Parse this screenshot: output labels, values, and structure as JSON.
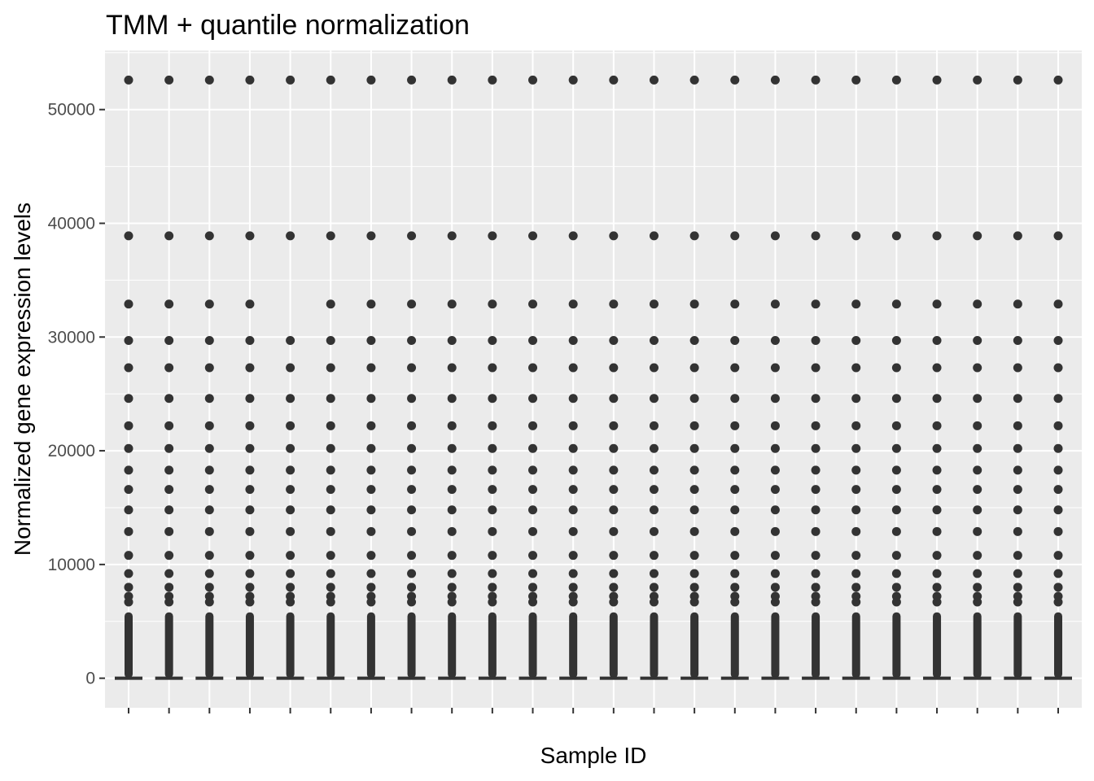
{
  "chart_data": {
    "type": "box",
    "title": "TMM + quantile normalization",
    "xlabel": "Sample ID",
    "ylabel": "Normalized gene expression levels",
    "ylim": [
      -2600,
      55200
    ],
    "y_ticks": [
      0,
      10000,
      20000,
      30000,
      40000,
      50000
    ],
    "y_tick_labels": [
      "0",
      "10000",
      "20000",
      "30000",
      "40000",
      "50000"
    ],
    "n_samples": 24,
    "x_tick_labels_note": "GTEX sample ID labels overlap and are illegible",
    "box": {
      "min": 0,
      "q1": 0,
      "median": 0,
      "q3": 0,
      "whisker_high": 0
    },
    "dense_outlier_range": [
      0,
      5800
    ],
    "outliers": [
      6700,
      7200,
      8000,
      9200,
      10800,
      12900,
      14800,
      16600,
      18300,
      20200,
      22200,
      24600,
      27300,
      29700,
      32900,
      38900,
      52600
    ],
    "missing_outliers": [
      {
        "sample_index": 4,
        "value": 32900
      }
    ],
    "grid": true,
    "panel_background": "#ebebeb",
    "grid_color": "#ffffff",
    "point_color": "#333333"
  }
}
